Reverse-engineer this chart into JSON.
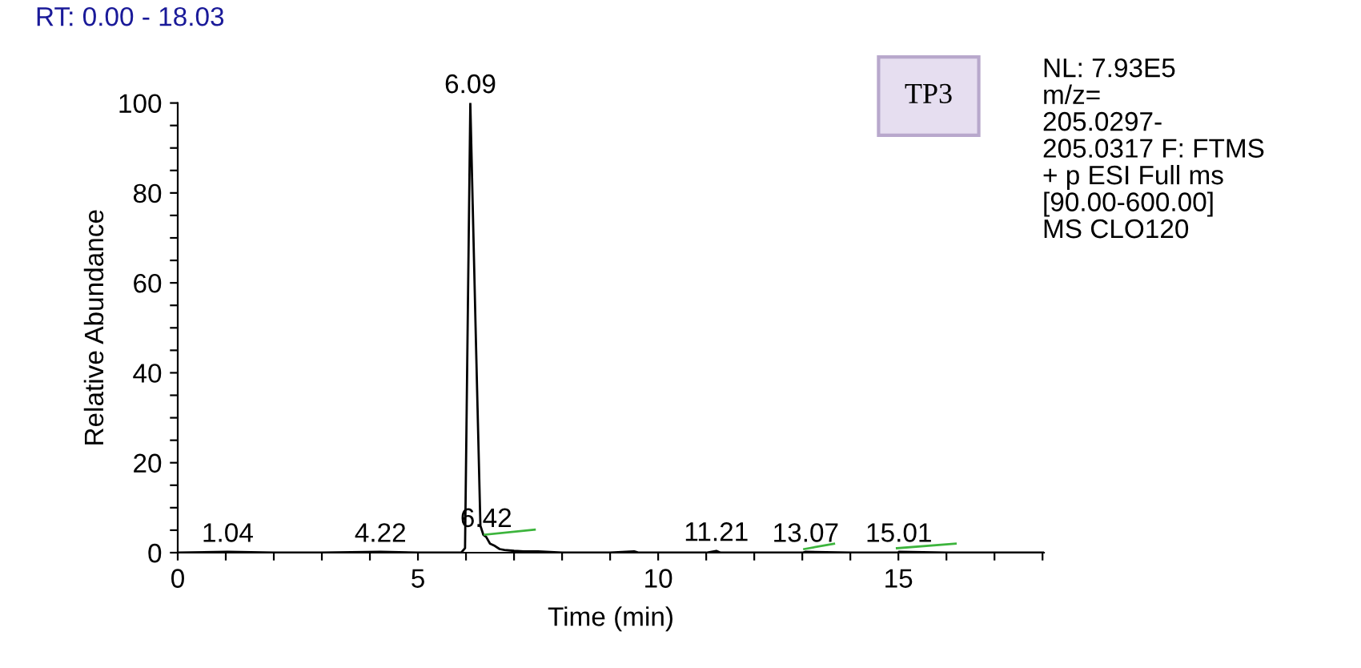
{
  "chart_data": {
    "type": "line",
    "title": "RT: 0.00 - 18.03",
    "xlabel": "Time (min)",
    "ylabel": "Relative Abundance",
    "series": [
      {
        "color": "#000000",
        "x": [
          0,
          1.04,
          2,
          3,
          4.22,
          5,
          5.9,
          5.98,
          6.09,
          6.2,
          6.3,
          6.36,
          6.42,
          6.5,
          6.6,
          6.7,
          6.8,
          7.0,
          7.2,
          7.5,
          8,
          9,
          9.5,
          9.6,
          10,
          11,
          11.21,
          11.3,
          12,
          13,
          13.07,
          14,
          15,
          15.01,
          16,
          17,
          18.03
        ],
        "values": [
          0,
          0.2,
          0,
          0,
          0.2,
          0,
          0,
          1,
          100,
          50,
          6,
          4,
          3.5,
          2,
          1.5,
          0.8,
          0.6,
          0.4,
          0.3,
          0.3,
          0,
          0,
          0.3,
          0,
          0,
          0,
          0.4,
          0,
          0,
          0,
          0.2,
          0,
          0,
          0.2,
          0,
          0,
          0
        ]
      },
      {
        "color": "#3cb43c",
        "x": [
          6.39,
          7.43
        ],
        "values": [
          4.0,
          5.1
        ]
      },
      {
        "color": "#3cb43c",
        "x": [
          13.04,
          13.66
        ],
        "values": [
          0.8,
          2.0
        ]
      },
      {
        "color": "#3cb43c",
        "x": [
          14.97,
          16.19
        ],
        "values": [
          1.0,
          2.0
        ]
      }
    ],
    "xlim": [
      0,
      18.03
    ],
    "ylim": [
      0,
      100
    ],
    "xticks": [
      0,
      {
        "value": 1,
        "label": null
      },
      {
        "value": 2,
        "label": null
      },
      {
        "value": 3,
        "label": null
      },
      {
        "value": 4,
        "label": null
      },
      5,
      {
        "value": 6,
        "label": null
      },
      {
        "value": 7,
        "label": null
      },
      {
        "value": 8,
        "label": null
      },
      {
        "value": 9,
        "label": null
      },
      10,
      {
        "value": 11,
        "label": null
      },
      {
        "value": 12,
        "label": null
      },
      {
        "value": 13,
        "label": null
      },
      {
        "value": 14,
        "label": null
      },
      15,
      {
        "value": 16,
        "label": null
      },
      {
        "value": 17,
        "label": null
      },
      {
        "value": 18,
        "label": null
      }
    ],
    "yticks": [
      0,
      {
        "value": 5,
        "label": null
      },
      {
        "value": 10,
        "label": null
      },
      {
        "value": 15,
        "label": null
      },
      20,
      {
        "value": 25,
        "label": null
      },
      {
        "value": 30,
        "label": null
      },
      {
        "value": 35,
        "label": null
      },
      40,
      {
        "value": 45,
        "label": null
      },
      {
        "value": 50,
        "label": null
      },
      {
        "value": 55,
        "label": null
      },
      60,
      {
        "value": 65,
        "label": null
      },
      {
        "value": 70,
        "label": null
      },
      {
        "value": 75,
        "label": null
      },
      80,
      {
        "value": 85,
        "label": null
      },
      {
        "value": 90,
        "label": null
      },
      {
        "value": 95,
        "label": null
      },
      100
    ],
    "annotations": [
      "TP3",
      "NL: 7.93E5\nm/z=\n205.0297-\n205.0317 F: FTMS\n+ p ESI Full ms\n[90.00-600.00]\nMS CLO120",
      {
        "text": "6.09",
        "x": 6.09,
        "y": 100
      },
      {
        "text": "1.04",
        "x": 1.04,
        "y": 0.2
      },
      {
        "text": "4.22",
        "x": 4.22,
        "y": 0.2
      },
      {
        "text": "6.42",
        "x": 6.42,
        "y": 3.5
      },
      {
        "text": "11.21",
        "x": 11.21,
        "y": 0.4
      },
      {
        "text": "13.07",
        "x": 13.07,
        "y": 0.2
      },
      {
        "text": "15.01",
        "x": 15.01,
        "y": 0.2
      }
    ],
    "grid": false,
    "legend": false,
    "marker": "none",
    "line_style": "solid"
  }
}
